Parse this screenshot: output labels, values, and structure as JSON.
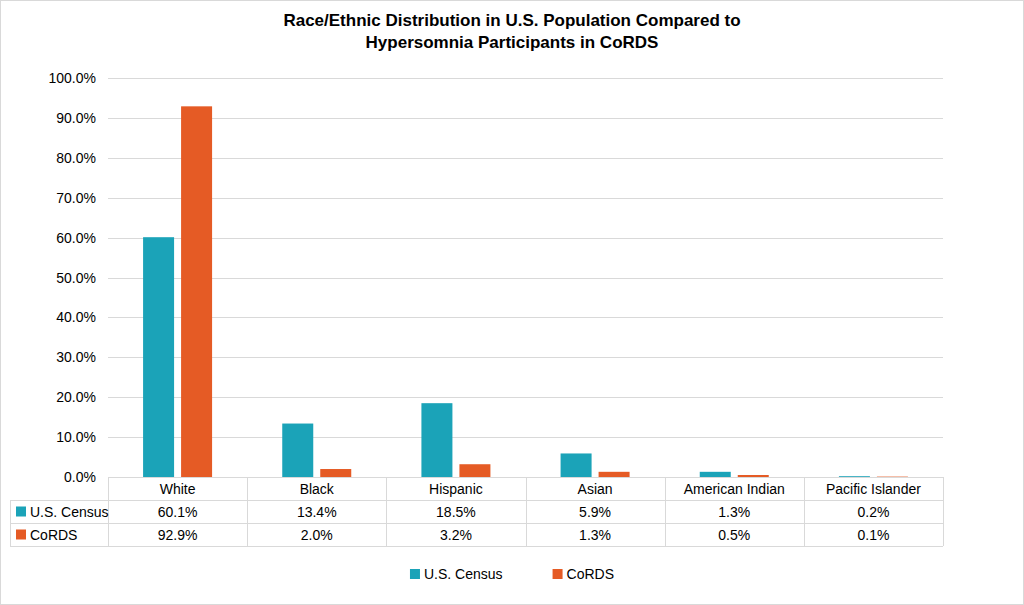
{
  "chart_data": {
    "type": "bar",
    "title": "Race/Ethnic Distribution in U.S. Population Compared to Hypersomnia Participants in CoRDS",
    "categories": [
      "White",
      "Black",
      "Hispanic",
      "Asian",
      "American Indian",
      "Pacific Islander"
    ],
    "series": [
      {
        "name": "U.S. Census",
        "color": "#1ba3b8",
        "values": [
          60.1,
          13.4,
          18.5,
          5.9,
          1.3,
          0.2
        ],
        "value_labels": [
          "60.1%",
          "13.4%",
          "18.5%",
          "5.9%",
          "1.3%",
          "0.2%"
        ]
      },
      {
        "name": "CoRDS",
        "color": "#e55b25",
        "values": [
          92.9,
          2.0,
          3.2,
          1.3,
          0.5,
          0.1
        ],
        "value_labels": [
          "92.9%",
          "2.0%",
          "3.2%",
          "1.3%",
          "0.5%",
          "0.1%"
        ]
      }
    ],
    "ylim": [
      0,
      100
    ],
    "yticks": [
      {
        "value": 0,
        "label": "0.0%"
      },
      {
        "value": 10,
        "label": "10.0%"
      },
      {
        "value": 20,
        "label": "20.0%"
      },
      {
        "value": 30,
        "label": "30.0%"
      },
      {
        "value": 40,
        "label": "40.0%"
      },
      {
        "value": 50,
        "label": "50.0%"
      },
      {
        "value": 60,
        "label": "60.0%"
      },
      {
        "value": 70,
        "label": "70.0%"
      },
      {
        "value": 80,
        "label": "80.0%"
      },
      {
        "value": 90,
        "label": "90.0%"
      },
      {
        "value": 100,
        "label": "100.0%"
      }
    ],
    "grid": true,
    "legend": "bottom"
  }
}
